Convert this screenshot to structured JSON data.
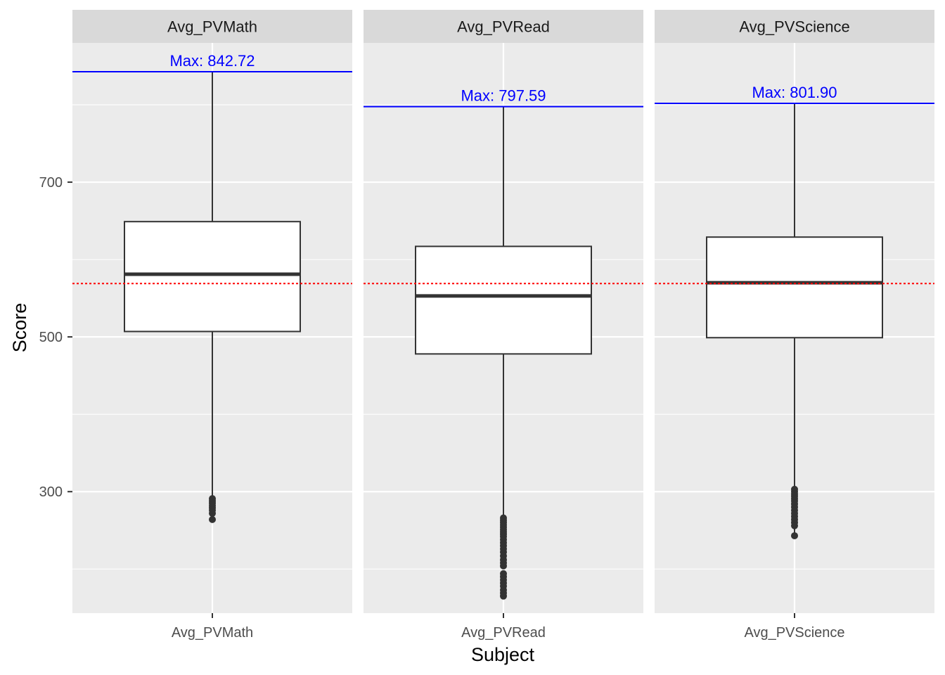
{
  "chart_data": {
    "type": "boxplot",
    "facet_by": "Subject",
    "xlabel": "Subject",
    "ylabel": "Score",
    "ylim": [
      143,
      880
    ],
    "y_ticks": [
      300,
      500,
      700
    ],
    "grid": true,
    "reference_line": {
      "value": 569,
      "color": "#ff0000",
      "style": "dotted"
    },
    "max_color": "#0000ff",
    "panels": [
      {
        "name": "Avg_PVMath",
        "box": {
          "whisker_low": 264,
          "q1": 507,
          "median": 581,
          "q3": 649,
          "whisker_high": 842.72
        },
        "max": 842.72,
        "max_label": "Max: 842.72",
        "outliers": [
          264,
          272,
          276,
          279,
          282,
          285,
          288,
          291
        ]
      },
      {
        "name": "Avg_PVRead",
        "box": {
          "whisker_low": 266,
          "q1": 478,
          "median": 553,
          "q3": 617,
          "whisker_high": 797.59
        },
        "max": 797.59,
        "max_label": "Max: 797.59",
        "outliers": [
          165,
          169,
          173,
          178,
          182,
          186,
          190,
          194,
          204,
          208,
          212,
          217,
          222,
          226,
          230,
          234,
          238,
          242,
          245,
          248,
          251,
          254,
          257,
          260,
          263,
          266
        ]
      },
      {
        "name": "Avg_PVScience",
        "box": {
          "whisker_low": 243,
          "q1": 499,
          "median": 570,
          "q3": 629,
          "whisker_high": 801.9
        },
        "max": 801.9,
        "max_label": "Max: 801.90",
        "outliers": [
          243,
          256,
          260,
          264,
          268,
          272,
          276,
          280,
          284,
          288,
          291,
          294,
          297,
          300,
          303
        ]
      }
    ]
  }
}
